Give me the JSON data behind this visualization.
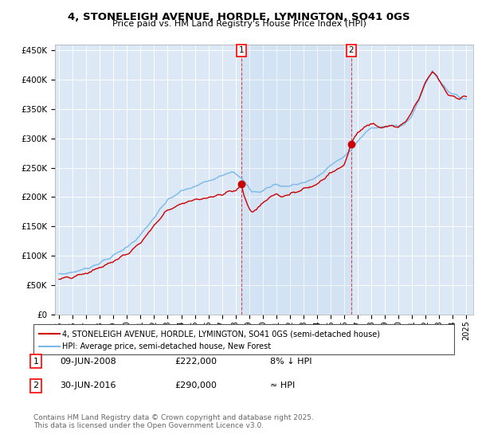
{
  "title1": "4, STONELEIGH AVENUE, HORDLE, LYMINGTON, SO41 0GS",
  "title2": "Price paid vs. HM Land Registry's House Price Index (HPI)",
  "legend1": "4, STONELEIGH AVENUE, HORDLE, LYMINGTON, SO41 0GS (semi-detached house)",
  "legend2": "HPI: Average price, semi-detached house, New Forest",
  "annotation1_label": "1",
  "annotation1_date": "09-JUN-2008",
  "annotation1_price": "£222,000",
  "annotation1_note": "8% ↓ HPI",
  "annotation2_label": "2",
  "annotation2_date": "30-JUN-2016",
  "annotation2_price": "£290,000",
  "annotation2_note": "≈ HPI",
  "footer": "Contains HM Land Registry data © Crown copyright and database right 2025.\nThis data is licensed under the Open Government Licence v3.0.",
  "bg_color": "#dce8f5",
  "hpi_color": "#7ab8e8",
  "price_color": "#cc0000",
  "ylim": [
    0,
    460000
  ],
  "yticks": [
    0,
    50000,
    100000,
    150000,
    200000,
    250000,
    300000,
    350000,
    400000,
    450000
  ],
  "xlim_start": 1994.7,
  "xlim_end": 2025.5,
  "purchase1_year": 2008.44,
  "purchase1_price": 222000,
  "purchase2_year": 2016.5,
  "purchase2_price": 290000
}
